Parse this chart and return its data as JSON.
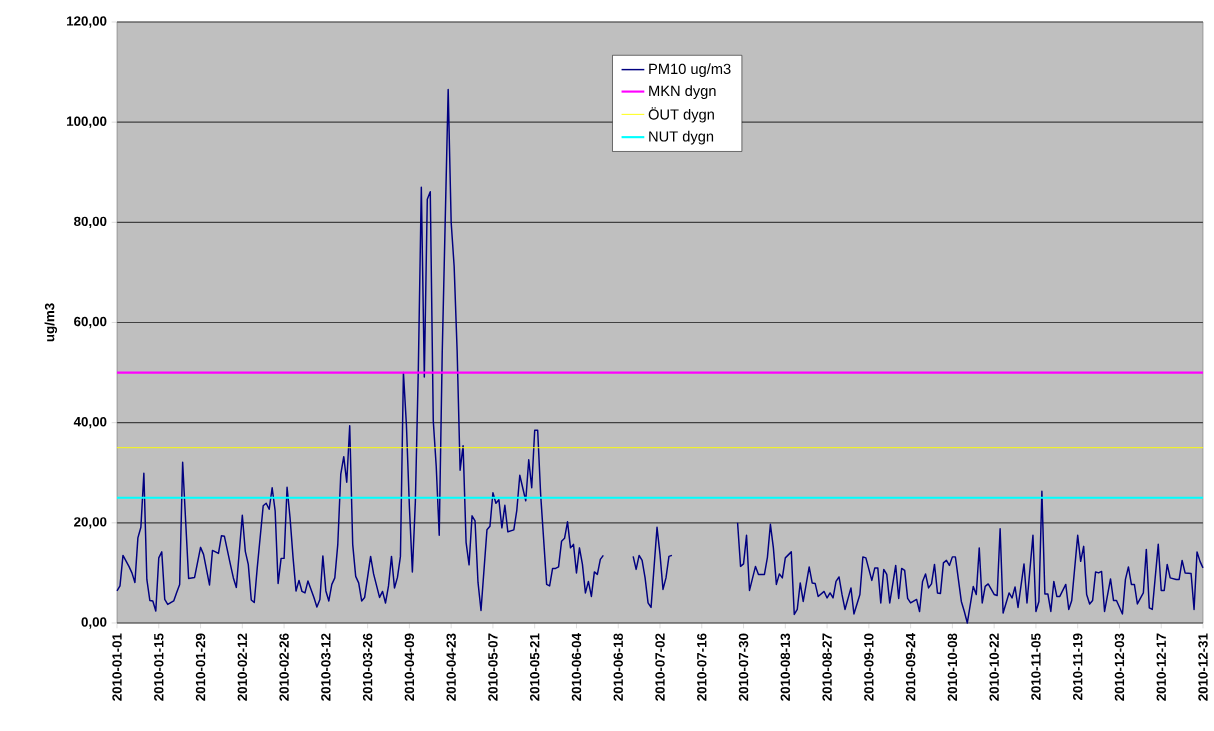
{
  "chart_data": {
    "type": "line",
    "ylabel": "ug/m3",
    "xlim": [
      "2010-01-01",
      "2010-12-31"
    ],
    "xticks": [
      "2010-01-01",
      "2010-01-15",
      "2010-01-29",
      "2010-02-12",
      "2010-02-26",
      "2010-03-12",
      "2010-03-26",
      "2010-04-09",
      "2010-04-23",
      "2010-05-07",
      "2010-05-21",
      "2010-06-04",
      "2010-06-18",
      "2010-07-02",
      "2010-07-16",
      "2010-07-30",
      "2010-08-13",
      "2010-08-27",
      "2010-09-10",
      "2010-09-24",
      "2010-10-08",
      "2010-10-22",
      "2010-11-05",
      "2010-11-19",
      "2010-12-03",
      "2010-12-17",
      "2010-12-31"
    ],
    "ylim": [
      0,
      120
    ],
    "yticks": [
      {
        "value": 0,
        "label": "0,00"
      },
      {
        "value": 20,
        "label": "20,00"
      },
      {
        "value": 40,
        "label": "40,00"
      },
      {
        "value": 60,
        "label": "60,00"
      },
      {
        "value": 80,
        "label": "80,00"
      },
      {
        "value": 100,
        "label": "100,00"
      },
      {
        "value": 120,
        "label": "120,00"
      }
    ],
    "grid": "y",
    "legend": "top",
    "marker": "none",
    "line_style": "solid",
    "series": [
      {
        "name": "PM10 ug/m3",
        "color": "#000080",
        "x": [
          "2010-01-01",
          "2010-01-02",
          "2010-01-03",
          "2010-01-05",
          "2010-01-06",
          "2010-01-07",
          "2010-01-08",
          "2010-01-09",
          "2010-01-10",
          "2010-01-11",
          "2010-01-12",
          "2010-01-13",
          "2010-01-14",
          "2010-01-15",
          "2010-01-16",
          "2010-01-17",
          "2010-01-18",
          "2010-01-20",
          "2010-01-21",
          "2010-01-22",
          "2010-01-23",
          "2010-01-24",
          "2010-01-25",
          "2010-01-27",
          "2010-01-29",
          "2010-01-30",
          "2010-02-01",
          "2010-02-02",
          "2010-02-04",
          "2010-02-05",
          "2010-02-06",
          "2010-02-08",
          "2010-02-09",
          "2010-02-10",
          "2010-02-12",
          "2010-02-13",
          "2010-02-14",
          "2010-02-15",
          "2010-02-16",
          "2010-02-17",
          "2010-02-19",
          "2010-02-20",
          "2010-02-21",
          "2010-02-22",
          "2010-02-23",
          "2010-02-24",
          "2010-02-25",
          "2010-02-26",
          "2010-02-27",
          "2010-02-28",
          "2010-03-01",
          "2010-03-02",
          "2010-03-03",
          "2010-03-04",
          "2010-03-05",
          "2010-03-06",
          "2010-03-08",
          "2010-03-09",
          "2010-03-10",
          "2010-03-11",
          "2010-03-12",
          "2010-03-13",
          "2010-03-14",
          "2010-03-15",
          "2010-03-16",
          "2010-03-17",
          "2010-03-18",
          "2010-03-19",
          "2010-03-20",
          "2010-03-21",
          "2010-03-22",
          "2010-03-23",
          "2010-03-24",
          "2010-03-25",
          "2010-03-27",
          "2010-03-28",
          "2010-03-30",
          "2010-03-31",
          "2010-04-01",
          "2010-04-02",
          "2010-04-03",
          "2010-04-04",
          "2010-04-05",
          "2010-04-06",
          "2010-04-07",
          "2010-04-08",
          "2010-04-09",
          "2010-04-10",
          "2010-04-11",
          "2010-04-12",
          "2010-04-13",
          "2010-04-14",
          "2010-04-15",
          "2010-04-16",
          "2010-04-17",
          "2010-04-18",
          "2010-04-19",
          "2010-04-20",
          "2010-04-22",
          "2010-04-23",
          "2010-04-24",
          "2010-04-25",
          "2010-04-26",
          "2010-04-27",
          "2010-04-28",
          "2010-04-29",
          "2010-04-30",
          "2010-05-01",
          "2010-05-02",
          "2010-05-03",
          "2010-05-05",
          "2010-05-06",
          "2010-05-07",
          "2010-05-08",
          "2010-05-09",
          "2010-05-10",
          "2010-05-11",
          "2010-05-12",
          "2010-05-14",
          "2010-05-15",
          "2010-05-16",
          "2010-05-18",
          "2010-05-19",
          "2010-05-20",
          "2010-05-21",
          "2010-05-22",
          "2010-05-23",
          "2010-05-25",
          "2010-05-26",
          "2010-05-27",
          "2010-05-28",
          "2010-05-29",
          "2010-05-30",
          "2010-05-31",
          "2010-06-01",
          "2010-06-02",
          "2010-06-03",
          "2010-06-04",
          "2010-06-05",
          "2010-06-06",
          "2010-06-07",
          "2010-06-08",
          "2010-06-09",
          "2010-06-10",
          "2010-06-11",
          "2010-06-12",
          "2010-06-13",
          "2010-06-18",
          "2010-06-23",
          "2010-06-24",
          "2010-06-25",
          "2010-06-26",
          "2010-06-27",
          "2010-06-28",
          "2010-06-29",
          "2010-07-01",
          "2010-07-02",
          "2010-07-03",
          "2010-07-04",
          "2010-07-05",
          "2010-07-06",
          "2010-07-17",
          "2010-07-28",
          "2010-07-29",
          "2010-07-30",
          "2010-07-31",
          "2010-08-01",
          "2010-08-03",
          "2010-08-04",
          "2010-08-06",
          "2010-08-07",
          "2010-08-08",
          "2010-08-09",
          "2010-08-10",
          "2010-08-11",
          "2010-08-12",
          "2010-08-13",
          "2010-08-15",
          "2010-08-16",
          "2010-08-17",
          "2010-08-18",
          "2010-08-19",
          "2010-08-21",
          "2010-08-22",
          "2010-08-23",
          "2010-08-24",
          "2010-08-26",
          "2010-08-27",
          "2010-08-28",
          "2010-08-29",
          "2010-08-30",
          "2010-08-31",
          "2010-09-01",
          "2010-09-02",
          "2010-09-04",
          "2010-09-05",
          "2010-09-07",
          "2010-09-08",
          "2010-09-09",
          "2010-09-11",
          "2010-09-12",
          "2010-09-13",
          "2010-09-14",
          "2010-09-15",
          "2010-09-16",
          "2010-09-17",
          "2010-09-19",
          "2010-09-20",
          "2010-09-21",
          "2010-09-22",
          "2010-09-23",
          "2010-09-24",
          "2010-09-26",
          "2010-09-27",
          "2010-09-28",
          "2010-09-29",
          "2010-09-30",
          "2010-10-01",
          "2010-10-02",
          "2010-10-03",
          "2010-10-04",
          "2010-10-05",
          "2010-10-06",
          "2010-10-07",
          "2010-10-08",
          "2010-10-09",
          "2010-10-11",
          "2010-10-12",
          "2010-10-13",
          "2010-10-15",
          "2010-10-16",
          "2010-10-17",
          "2010-10-18",
          "2010-10-19",
          "2010-10-20",
          "2010-10-22",
          "2010-10-23",
          "2010-10-24",
          "2010-10-25",
          "2010-10-27",
          "2010-10-28",
          "2010-10-29",
          "2010-10-30",
          "2010-11-01",
          "2010-11-02",
          "2010-11-04",
          "2010-11-05",
          "2010-11-06",
          "2010-11-07",
          "2010-11-08",
          "2010-11-09",
          "2010-11-10",
          "2010-11-11",
          "2010-11-12",
          "2010-11-13",
          "2010-11-15",
          "2010-11-16",
          "2010-11-17",
          "2010-11-19",
          "2010-11-20",
          "2010-11-21",
          "2010-11-22",
          "2010-11-23",
          "2010-11-24",
          "2010-11-25",
          "2010-11-26",
          "2010-11-27",
          "2010-11-28",
          "2010-11-30",
          "2010-12-01",
          "2010-12-02",
          "2010-12-04",
          "2010-12-05",
          "2010-12-06",
          "2010-12-07",
          "2010-12-08",
          "2010-12-09",
          "2010-12-11",
          "2010-12-12",
          "2010-12-13",
          "2010-12-14",
          "2010-12-16",
          "2010-12-17",
          "2010-12-18",
          "2010-12-19",
          "2010-12-20",
          "2010-12-22",
          "2010-12-23",
          "2010-12-24",
          "2010-12-25",
          "2010-12-27",
          "2010-12-28",
          "2010-12-29",
          "2010-12-30",
          "2010-12-31"
        ],
        "values": [
          6.4,
          7.4,
          13.5,
          11.3,
          10,
          8.1,
          17,
          19.1,
          29.9,
          8.7,
          4.5,
          4.4,
          2.4,
          13,
          14.2,
          4.7,
          3.7,
          4.4,
          6.1,
          7.7,
          32.1,
          20.4,
          8.9,
          9.1,
          15.1,
          13.7,
          7.6,
          14.5,
          13.9,
          17.4,
          17.3,
          11.7,
          9,
          7.1,
          21.5,
          14.3,
          11.7,
          4.6,
          4.1,
          11,
          23.4,
          23.9,
          22.7,
          27,
          22.4,
          7.9,
          12.9,
          12.9,
          27.1,
          21,
          13.1,
          6.4,
          8.5,
          6.3,
          6,
          8.4,
          5.1,
          3.2,
          4.7,
          13.4,
          6.4,
          4.4,
          7.7,
          9,
          15.7,
          29.7,
          33.2,
          28.1,
          39.4,
          15.7,
          9.3,
          8,
          4.4,
          5.1,
          13.3,
          9.8,
          5.1,
          6.3,
          4,
          7.4,
          13.3,
          7,
          9.1,
          13.3,
          50,
          39.6,
          23.2,
          10.2,
          24.2,
          50.9,
          87,
          49.1,
          84.6,
          86.1,
          40.4,
          31.2,
          17.5,
          53.7,
          106.5,
          80,
          71.2,
          54.4,
          30.5,
          35.4,
          16.1,
          11.6,
          21.4,
          20.4,
          8.1,
          2.5,
          18.6,
          19.3,
          26,
          23.9,
          24.6,
          19,
          23.5,
          18.2,
          18.6,
          22.5,
          29.5,
          24.4,
          32.6,
          27,
          38.5,
          38.5,
          25.6,
          7.7,
          7.4,
          10.9,
          10.9,
          11.2,
          16.3,
          16.9,
          20.2,
          15,
          15.7,
          10,
          15,
          11.7,
          6,
          8.3,
          5.3,
          10.2,
          9.7,
          12.7,
          13.5,
          null,
          13.3,
          10.7,
          13.5,
          12.5,
          9,
          4,
          3.1,
          19.1,
          13.7,
          6.7,
          9,
          13.3,
          13.5,
          null,
          20,
          11.3,
          11.8,
          17.5,
          6.5,
          11.3,
          9.7,
          9.7,
          13.1,
          19.7,
          15,
          7.7,
          9.8,
          9,
          13,
          14.2,
          1.7,
          2.7,
          8,
          4.3,
          11.2,
          8,
          7.9,
          5.3,
          6.3,
          5,
          6,
          5,
          8.3,
          9.2,
          5.7,
          2.7,
          7,
          1.8,
          5.7,
          13.2,
          13,
          8.5,
          11,
          11,
          4,
          10.7,
          9.7,
          4,
          11.5,
          4.9,
          10.9,
          10.5,
          4.9,
          4,
          4.7,
          2.3,
          8.3,
          9.8,
          7,
          7.8,
          11.7,
          6,
          5.9,
          12,
          12.5,
          11.5,
          13.2,
          13.2,
          4.3,
          2.3,
          0,
          7.3,
          5.7,
          15,
          4,
          7.3,
          7.8,
          5.7,
          5.5,
          18.8,
          2,
          6,
          5,
          7.2,
          3.1,
          11.8,
          4,
          17.5,
          2.3,
          4.3,
          26.3,
          5.8,
          5.8,
          2.3,
          8.3,
          5.3,
          5.3,
          7.7,
          2.7,
          4.5,
          17.5,
          12.3,
          15.3,
          5.7,
          3.8,
          4.5,
          10.2,
          10,
          10.3,
          2.3,
          8.8,
          4.5,
          4.5,
          1.8,
          8.7,
          11.2,
          7.7,
          7.7,
          3.8,
          6,
          14.7,
          3,
          2.7,
          15.7,
          6.5,
          6.5,
          11.7,
          9,
          8.7,
          8.7,
          12.5,
          10,
          9.9,
          2.7,
          14.2,
          12.3,
          11
        ]
      },
      {
        "name": "MKN dygn",
        "color": "#ff00ff",
        "x": [
          "2010-01-01",
          "2010-12-31"
        ],
        "values": [
          50,
          50
        ]
      },
      {
        "name": "ÖUT dygn",
        "color": "#ffff00",
        "x": [
          "2010-01-01",
          "2010-12-31"
        ],
        "values": [
          35,
          35
        ]
      },
      {
        "name": "NUT dygn",
        "color": "#00ffff",
        "x": [
          "2010-01-01",
          "2010-12-31"
        ],
        "values": [
          25,
          25
        ]
      }
    ]
  }
}
